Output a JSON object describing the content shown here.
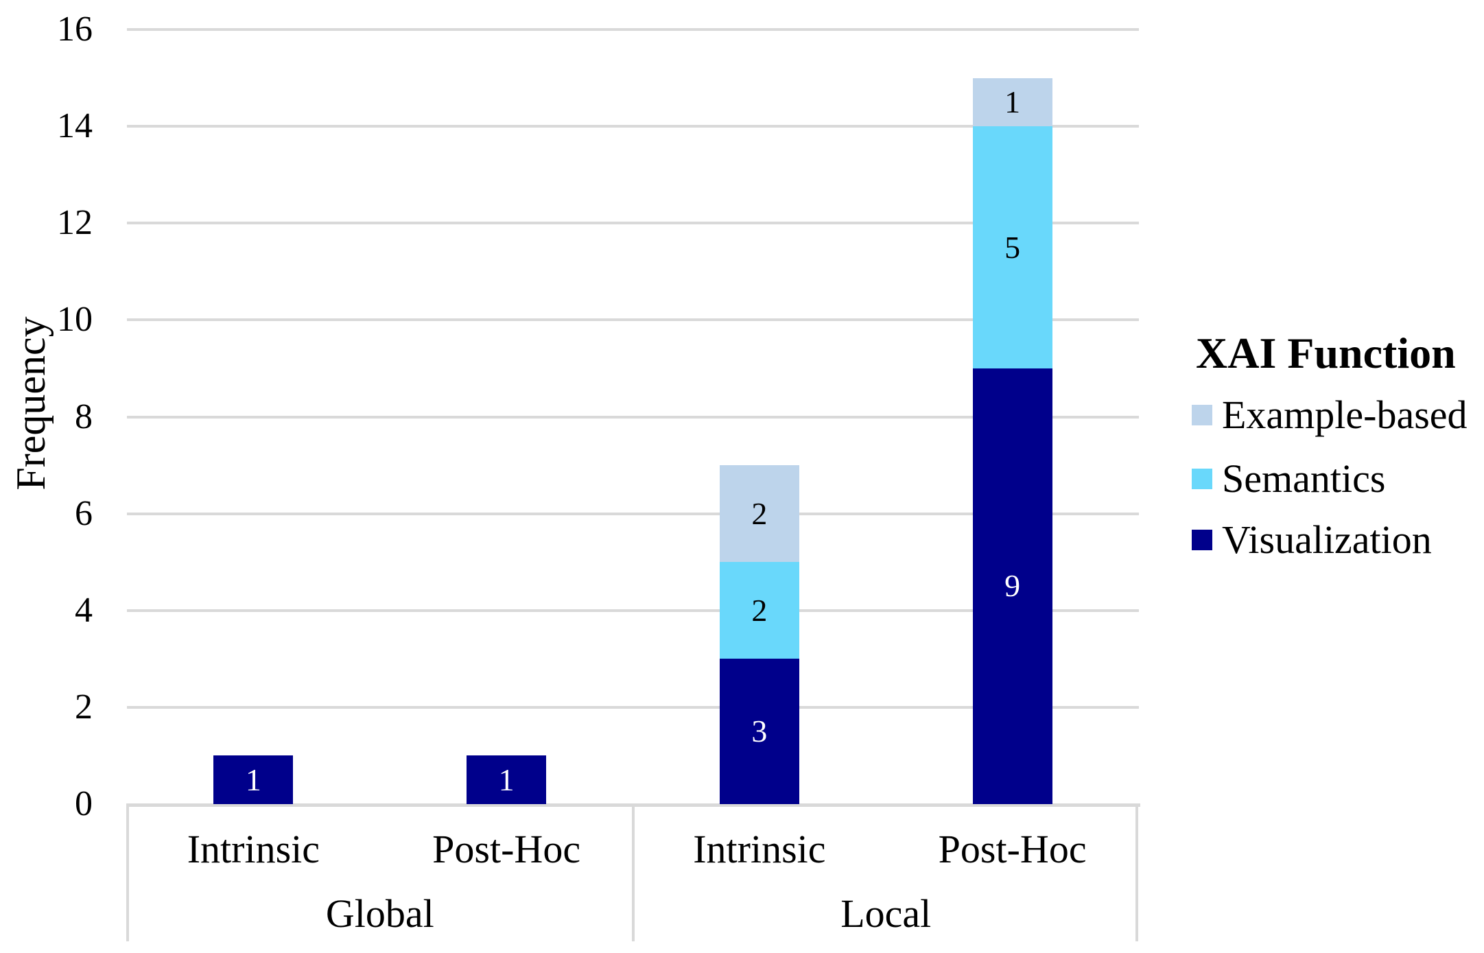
{
  "chart_data": {
    "type": "bar",
    "stacked": true,
    "orientation": "vertical",
    "ylabel": "Frequency",
    "xlabel": "",
    "ylim": [
      0,
      16
    ],
    "yticks": [
      0,
      2,
      4,
      6,
      8,
      10,
      12,
      14,
      16
    ],
    "grid": true,
    "categories": [
      "Intrinsic",
      "Post-Hoc",
      "Intrinsic",
      "Post-Hoc"
    ],
    "groups": [
      {
        "label": "Global",
        "category_indices": [
          0,
          1
        ]
      },
      {
        "label": "Local",
        "category_indices": [
          2,
          3
        ]
      }
    ],
    "series": [
      {
        "name": "Visualization",
        "color": "#00008B",
        "label_color": "#FFFFFF",
        "values": [
          1,
          1,
          3,
          9
        ]
      },
      {
        "name": "Semantics",
        "color": "#69D8FB",
        "label_color": "#000000",
        "values": [
          0,
          0,
          2,
          5
        ]
      },
      {
        "name": "Example-based",
        "color": "#BDD4EB",
        "label_color": "#000000",
        "values": [
          0,
          0,
          2,
          1
        ]
      }
    ],
    "data_labels_shown": [
      "1",
      "1",
      "3",
      "2",
      "2",
      "9",
      "5",
      "1"
    ],
    "totals": [
      1,
      1,
      7,
      15
    ],
    "legend": {
      "title": "XAI Function",
      "position": "right",
      "entries": [
        "Example-based",
        "Semantics",
        "Visualization"
      ]
    },
    "colors": {
      "gridline": "#D9D9D9",
      "axis_line": "#D9D9D9",
      "text": "#000000",
      "background": "#FFFFFF"
    }
  }
}
